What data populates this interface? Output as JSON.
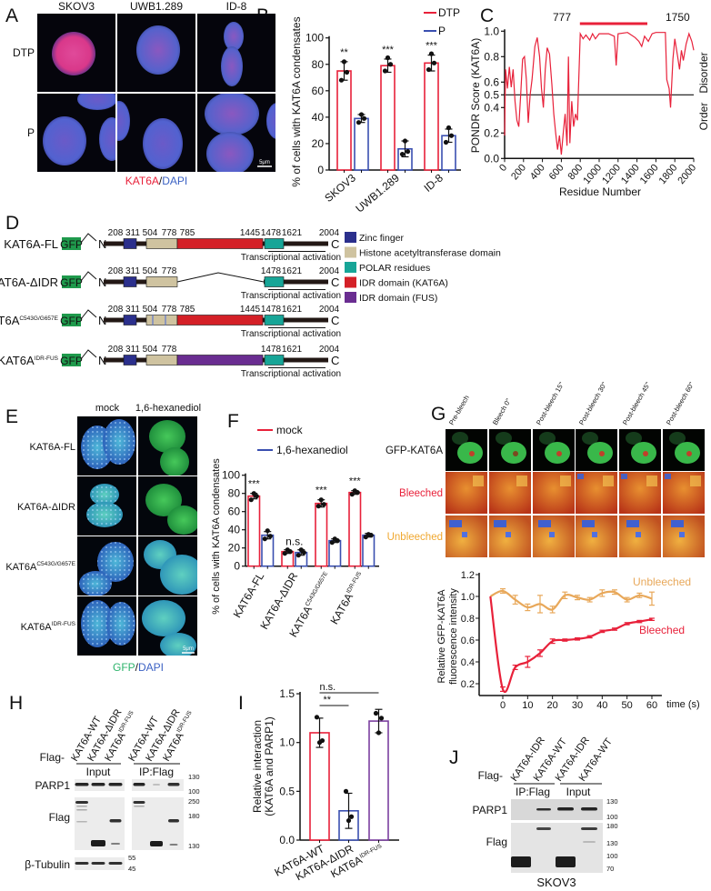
{
  "panels": {
    "A": {
      "label": "A",
      "columns": [
        "SKOV3",
        "UWB1.289",
        "ID-8"
      ],
      "rows": [
        "DTP",
        "P"
      ],
      "scale_bar": "5μm",
      "stain": {
        "first": "KAT6A",
        "sep": "/",
        "second": "DAPI"
      },
      "colors": {
        "first": "#e8213a",
        "second": "#3c62c4"
      }
    },
    "B": {
      "label": "B"
    },
    "C": {
      "label": "C",
      "idr_start": "777",
      "idr_end": "1750",
      "right_labels": {
        "upper": "Disorder",
        "lower": "Order"
      }
    },
    "D": {
      "label": "D",
      "tag": "GFP",
      "n_term": "N",
      "c_term": "C",
      "activation_label": "Transcriptional activation",
      "constructs": [
        {
          "name": "KAT6A-FL",
          "sup": "",
          "type": "full",
          "numbers": [
            "208",
            "311",
            "504",
            "778",
            "785",
            "1445",
            "1478",
            "1621",
            "2004"
          ]
        },
        {
          "name": "KAT6A-ΔIDR",
          "sup": "",
          "type": "delta",
          "numbers": [
            "208",
            "311",
            "504",
            "778",
            "1478",
            "1621",
            "2004"
          ]
        },
        {
          "name": "KAT6A",
          "sup": "C543G/G657E",
          "type": "mutant",
          "numbers": [
            "208",
            "311",
            "504",
            "778",
            "785",
            "1445",
            "1478",
            "1621",
            "2004"
          ]
        },
        {
          "name": "KAT6A",
          "sup": "IDR-FUS",
          "type": "fus",
          "numbers": [
            "208",
            "311",
            "504",
            "778",
            "1478",
            "1621",
            "2004"
          ]
        }
      ],
      "legend": [
        {
          "label": "Zinc finger",
          "color": "#2b2f8c"
        },
        {
          "label": "Histone acetyltransferase domain",
          "color": "#cfc3a0"
        },
        {
          "label": "POLAR residues",
          "color": "#17a597"
        },
        {
          "label": "IDR domain (KAT6A)",
          "color": "#d42027"
        },
        {
          "label": "IDR domain (FUS)",
          "color": "#6a2d91"
        }
      ],
      "colors": {
        "gfp": "#1f9a4c",
        "backbone": "#231815"
      }
    },
    "E": {
      "label": "E",
      "columns": [
        "mock",
        "1,6-hexanediol"
      ],
      "rows": [
        {
          "name": "KAT6A-FL",
          "sup": ""
        },
        {
          "name": "KAT6A-ΔIDR",
          "sup": ""
        },
        {
          "name": "KAT6A",
          "sup": "C543G/G657E"
        },
        {
          "name": "KAT6A",
          "sup": "IDR-FUS"
        }
      ],
      "scale_bar": "5μm",
      "stain": {
        "first": "GFP",
        "sep": "/",
        "second": "DAPI"
      },
      "colors": {
        "first": "#2db36b",
        "second": "#3c62c4"
      }
    },
    "F": {
      "label": "F"
    },
    "G": {
      "label": "G",
      "columns": [
        "Pre-bleech",
        "Bleech 0''",
        "Post-bleech 15''",
        "Post-bleech 30''",
        "Post-bleech 45''",
        "Post-bleech 60''"
      ],
      "rows": [
        {
          "label": "GFP-KAT6A",
          "color": "#111111"
        },
        {
          "label": "Bleeched",
          "color": "#e8213a"
        },
        {
          "label": "Unbleeched",
          "color": "#f0a830"
        }
      ]
    },
    "H": {
      "label": "H",
      "flag_prefix": "Flag-",
      "lanes": [
        {
          "name": "KAT6A-WT",
          "sup": ""
        },
        {
          "name": "KAT6A-ΔIDR",
          "sup": ""
        },
        {
          "name": "KAT6A",
          "sup": "IDR-FUS"
        },
        {
          "name": "KAT6A-WT",
          "sup": ""
        },
        {
          "name": "KAT6A-ΔIDR",
          "sup": ""
        },
        {
          "name": "KAT6A",
          "sup": "IDR-FUS"
        }
      ],
      "groups": [
        "Input",
        "IP:Flag"
      ],
      "blots": [
        "PARP1",
        "Flag",
        "β-Tubulin"
      ],
      "markers": {
        "parp1": [
          "130",
          "100"
        ],
        "flag": [
          "250",
          "180",
          "130"
        ],
        "tubulin": [
          "55",
          "45"
        ]
      }
    },
    "I": {
      "label": "I"
    },
    "J": {
      "label": "J",
      "flag_prefix": "Flag-",
      "lanes": [
        "KAT6A-IDR",
        "KAT6A-WT",
        "KAT6A-IDR",
        "KAT6A-WT"
      ],
      "groups": [
        "IP:Flag",
        "Input"
      ],
      "blots": [
        "PARP1",
        "Flag"
      ],
      "markers": {
        "parp1": [
          "130",
          "100"
        ],
        "flag": [
          "180",
          "130",
          "100",
          "70"
        ]
      },
      "cell_line": "SKOV3"
    }
  },
  "chart_data": [
    {
      "panel": "B",
      "type": "bar",
      "ylabel": "% of cells with KAT6A condensates",
      "ylim": [
        0,
        100
      ],
      "yticks": [
        0,
        20,
        40,
        60,
        80,
        100
      ],
      "categories": [
        "SKOV3",
        "UWB1.289",
        "ID-8"
      ],
      "series": [
        {
          "name": "DTP",
          "color": "#e8213a",
          "values": [
            75,
            79,
            81
          ],
          "sd": [
            7,
            5,
            6
          ],
          "points": [
            [
              68,
              74,
              82
            ],
            [
              75,
              80,
              85
            ],
            [
              76,
              81,
              88
            ]
          ]
        },
        {
          "name": "P",
          "color": "#3a4fb0",
          "values": [
            39,
            16,
            26
          ],
          "sd": [
            3,
            6,
            5
          ],
          "points": [
            [
              36,
              39,
              42
            ],
            [
              12,
              14,
              22
            ],
            [
              21,
              26,
              32
            ]
          ]
        }
      ],
      "significance": [
        "**",
        "***",
        "***"
      ],
      "legend": "top-right"
    },
    {
      "panel": "C",
      "type": "line",
      "ylabel": "PONDR Score (KAT6A)",
      "xlabel": "Residue Number",
      "xlim": [
        0,
        2000
      ],
      "ylim": [
        0,
        1
      ],
      "xticks": [
        0,
        200,
        400,
        600,
        800,
        1000,
        1200,
        1400,
        1600,
        1800,
        2000
      ],
      "yticks": [
        0.0,
        0.2,
        0.4,
        0.5,
        0.6,
        0.8,
        1.0
      ],
      "threshold": 0.5,
      "color": "#e8213a",
      "idr_region": [
        777,
        1750
      ],
      "points": [
        [
          0,
          0.18
        ],
        [
          10,
          0.7
        ],
        [
          30,
          0.55
        ],
        [
          50,
          0.72
        ],
        [
          70,
          0.56
        ],
        [
          90,
          0.7
        ],
        [
          110,
          0.45
        ],
        [
          130,
          0.3
        ],
        [
          150,
          0.25
        ],
        [
          170,
          0.5
        ],
        [
          190,
          0.78
        ],
        [
          210,
          0.8
        ],
        [
          230,
          0.62
        ],
        [
          250,
          0.28
        ],
        [
          270,
          0.5
        ],
        [
          290,
          0.62
        ],
        [
          320,
          0.88
        ],
        [
          345,
          0.95
        ],
        [
          370,
          0.8
        ],
        [
          390,
          0.55
        ],
        [
          410,
          0.4
        ],
        [
          430,
          0.7
        ],
        [
          450,
          0.87
        ],
        [
          475,
          0.82
        ],
        [
          500,
          0.58
        ],
        [
          520,
          0.35
        ],
        [
          540,
          0.2
        ],
        [
          560,
          0.07
        ],
        [
          580,
          0.18
        ],
        [
          600,
          0.03
        ],
        [
          620,
          0.2
        ],
        [
          640,
          0.35
        ],
        [
          660,
          0.1
        ],
        [
          675,
          0.8
        ],
        [
          690,
          0.12
        ],
        [
          710,
          0.45
        ],
        [
          730,
          0.25
        ],
        [
          750,
          0.35
        ],
        [
          770,
          0.3
        ],
        [
          790,
          0.75
        ],
        [
          800,
          0.98
        ],
        [
          830,
          0.94
        ],
        [
          860,
          0.97
        ],
        [
          900,
          0.93
        ],
        [
          930,
          0.98
        ],
        [
          960,
          0.94
        ],
        [
          1000,
          0.98
        ],
        [
          1100,
          0.98
        ],
        [
          1160,
          0.96
        ],
        [
          1180,
          0.73
        ],
        [
          1200,
          0.98
        ],
        [
          1300,
          0.99
        ],
        [
          1380,
          0.95
        ],
        [
          1420,
          0.92
        ],
        [
          1450,
          0.88
        ],
        [
          1480,
          0.96
        ],
        [
          1520,
          0.92
        ],
        [
          1560,
          0.98
        ],
        [
          1600,
          0.99
        ],
        [
          1700,
          0.99
        ],
        [
          1715,
          0.62
        ],
        [
          1740,
          0.55
        ],
        [
          1755,
          0.4
        ],
        [
          1780,
          0.78
        ],
        [
          1800,
          0.94
        ],
        [
          1830,
          0.8
        ],
        [
          1850,
          0.7
        ],
        [
          1870,
          0.85
        ],
        [
          1890,
          0.77
        ],
        [
          1920,
          0.9
        ],
        [
          1950,
          0.98
        ],
        [
          1980,
          0.92
        ],
        [
          2000,
          0.85
        ]
      ]
    },
    {
      "panel": "F",
      "type": "bar",
      "ylabel": "% of cells with KAT6A condensates",
      "ylim": [
        0,
        100
      ],
      "yticks": [
        0,
        20,
        40,
        60,
        80,
        100
      ],
      "categories": [
        {
          "name": "KAT6A-FL",
          "sup": ""
        },
        {
          "name": "KAT6A-ΔIDR",
          "sup": ""
        },
        {
          "name": "KAT6A",
          "sup": "C543G/G657E"
        },
        {
          "name": "KAT6A",
          "sup": "IDR-FUS"
        }
      ],
      "series": [
        {
          "name": "mock",
          "color": "#e8213a",
          "values": [
            77,
            16,
            69,
            81
          ],
          "sd": [
            3,
            2,
            4,
            2
          ],
          "points": [
            [
              73,
              77,
              80
            ],
            [
              14,
              16,
              18
            ],
            [
              66,
              68,
              73
            ],
            [
              79,
              81,
              83
            ]
          ]
        },
        {
          "name": "1,6-hexanediol",
          "color": "#3a4fb0",
          "values": [
            34,
            15,
            28,
            34
          ],
          "sd": [
            4,
            3,
            2,
            2
          ],
          "points": [
            [
              30,
              33,
              39
            ],
            [
              12,
              15,
              18
            ],
            [
              26,
              28,
              30
            ],
            [
              32,
              34,
              35
            ]
          ]
        }
      ],
      "significance": [
        "***",
        "n.s.",
        "***",
        "***"
      ],
      "legend": "top"
    },
    {
      "panel": "G",
      "type": "line",
      "ylabel": [
        "Relative GFP-KAT6A",
        "fluorescence intensity"
      ],
      "xlabel": "time (s)",
      "xlim": [
        -10,
        65
      ],
      "ylim": [
        0.1,
        1.2
      ],
      "xticks": [
        0,
        10,
        20,
        30,
        40,
        50,
        60
      ],
      "yticks": [
        0.2,
        0.4,
        0.6,
        0.8,
        1.0,
        1.2
      ],
      "x": [
        -5,
        0,
        5,
        10,
        15,
        20,
        25,
        30,
        35,
        40,
        45,
        50,
        55,
        60
      ],
      "series": [
        {
          "name": "Unbleeched",
          "color": "#e8a85a",
          "values": [
            1.0,
            1.05,
            0.97,
            0.9,
            0.93,
            0.88,
            1.01,
            0.99,
            0.97,
            1.03,
            1.04,
            0.97,
            1.01,
            0.98
          ],
          "err": [
            0,
            0.02,
            0.04,
            0.03,
            0.08,
            0.03,
            0.03,
            0.02,
            0.02,
            0.03,
            0.02,
            0.02,
            0.02,
            0.06
          ]
        },
        {
          "name": "Bleeched",
          "color": "#e8213a",
          "values": [
            1.0,
            0.15,
            0.35,
            0.4,
            0.48,
            0.59,
            0.6,
            0.61,
            0.63,
            0.68,
            0.7,
            0.75,
            0.77,
            0.79
          ],
          "err": [
            0,
            0.02,
            0.02,
            0.05,
            0.03,
            0.02,
            0.01,
            0.01,
            0.01,
            0.01,
            0.01,
            0.01,
            0.01,
            0.01
          ]
        }
      ]
    },
    {
      "panel": "I",
      "type": "bar",
      "ylabel": [
        "Relative interaction",
        "(KAT6A and PARP1)"
      ],
      "ylim": [
        0,
        1.5
      ],
      "yticks": [
        0.0,
        0.5,
        1.0,
        1.5
      ],
      "categories": [
        {
          "name": "KAT6A-WT",
          "sup": ""
        },
        {
          "name": "KAT6A-ΔIDR",
          "sup": ""
        },
        {
          "name": "KAT6A",
          "sup": "IDR-FUS"
        }
      ],
      "colors": [
        "#e8213a",
        "#3a4fb0",
        "#7b3fa0"
      ],
      "values": [
        1.1,
        0.3,
        1.22
      ],
      "sd": [
        0.15,
        0.18,
        0.12
      ],
      "points": [
        [
          1.26,
          1.02,
          1.0
        ],
        [
          0.5,
          0.24,
          0.2
        ],
        [
          1.3,
          1.25,
          1.1
        ]
      ],
      "comparisons": [
        {
          "label": "**",
          "from": 0,
          "to": 1
        },
        {
          "label": "n.s.",
          "from": 0,
          "to": 2
        }
      ]
    }
  ]
}
